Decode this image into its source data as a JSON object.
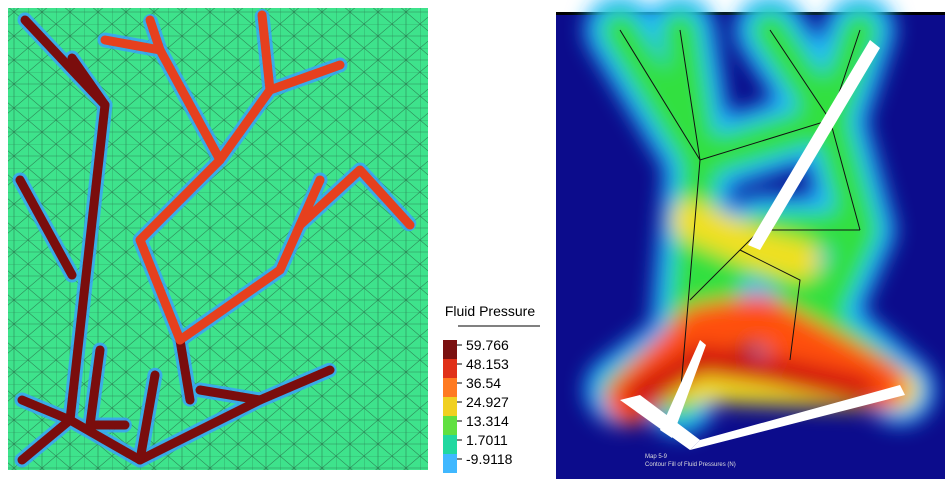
{
  "legend": {
    "title": "Fluid Pressure",
    "labels": [
      "59.766",
      "48.153",
      "36.54",
      "24.927",
      "13.314",
      "1.7011",
      "-9.9118"
    ],
    "colors": [
      "#7a1010",
      "#e03018",
      "#ff7a20",
      "#f0d020",
      "#60e040",
      "#20d8a0",
      "#40b8ff"
    ]
  },
  "right_panel": {
    "caption": [
      "Map 5-9",
      "Contour Fill of Fluid Pressures (N)"
    ]
  }
}
